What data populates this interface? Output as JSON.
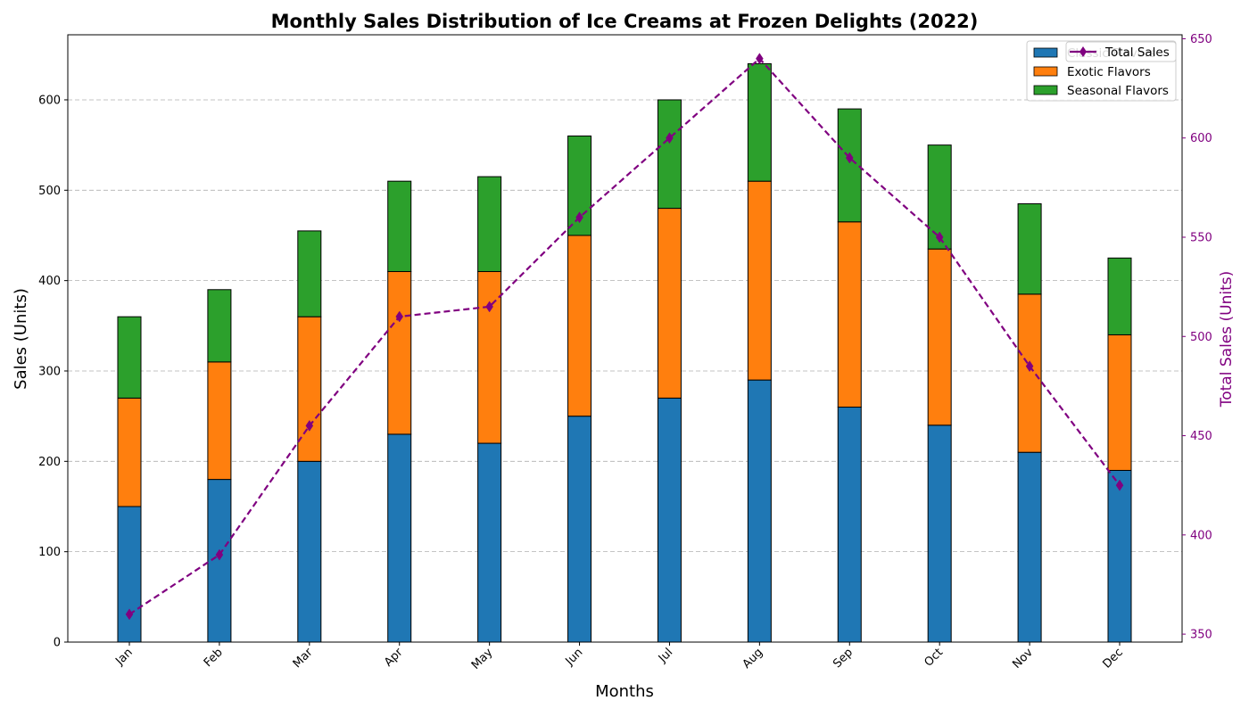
{
  "chart_data": {
    "type": "bar",
    "stacked": true,
    "title": "Monthly Sales Distribution of Ice Creams at Frozen Delights (2022)",
    "xlabel": "Months",
    "ylabel": "Sales (Units)",
    "y2label": "Total Sales (Units)",
    "categories": [
      "Jan",
      "Feb",
      "Mar",
      "Apr",
      "May",
      "Jun",
      "Jul",
      "Aug",
      "Sep",
      "Oct",
      "Nov",
      "Dec"
    ],
    "ylim": [
      0,
      672
    ],
    "yticks": [
      0,
      100,
      200,
      300,
      400,
      500,
      600
    ],
    "y2lim": [
      346,
      652
    ],
    "y2ticks": [
      350,
      400,
      450,
      500,
      550,
      600,
      650
    ],
    "grid": "y-dashed",
    "legend_position": "top-right",
    "series": [
      {
        "name": "Classic Flavors",
        "type": "bar",
        "color": "#1f77b4",
        "values": [
          150,
          180,
          200,
          230,
          220,
          250,
          270,
          290,
          260,
          240,
          210,
          190
        ]
      },
      {
        "name": "Exotic Flavors",
        "type": "bar",
        "color": "#ff7f0e",
        "values": [
          120,
          130,
          160,
          180,
          190,
          200,
          210,
          220,
          205,
          195,
          175,
          150
        ]
      },
      {
        "name": "Seasonal Flavors",
        "type": "bar",
        "color": "#2ca02c",
        "values": [
          90,
          80,
          95,
          100,
          105,
          110,
          120,
          130,
          125,
          115,
          100,
          85
        ]
      },
      {
        "name": "Total Sales",
        "type": "line",
        "axis": "right",
        "color": "#800080",
        "values": [
          360,
          390,
          455,
          510,
          515,
          560,
          600,
          640,
          590,
          550,
          485,
          425
        ]
      }
    ]
  }
}
